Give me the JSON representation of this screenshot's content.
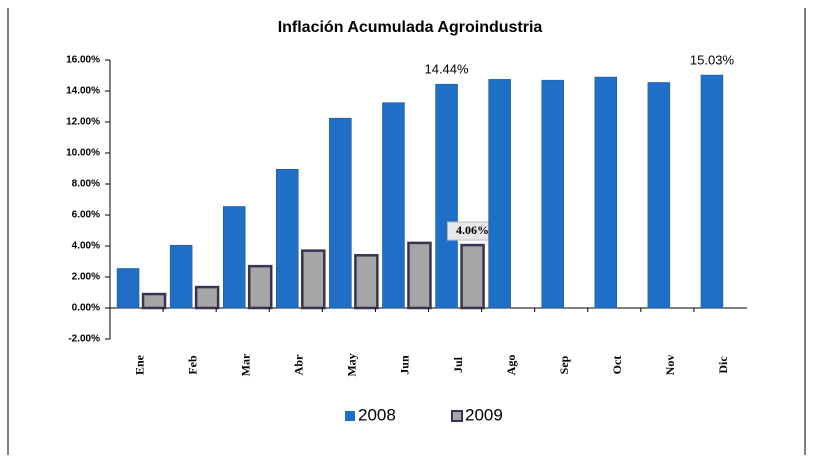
{
  "chart_data": {
    "type": "bar",
    "title": "Inflación Acumulada Agroindustria",
    "categories": [
      "Ene",
      "Feb",
      "Mar",
      "Abr",
      "May",
      "Jun",
      "Jul",
      "Ago",
      "Sep",
      "Oct",
      "Nov",
      "Dic"
    ],
    "series": [
      {
        "name": "2008",
        "color": "#1f6fc6",
        "values": [
          2.55,
          4.05,
          6.55,
          8.95,
          12.25,
          13.25,
          14.44,
          14.75,
          14.7,
          14.9,
          14.55,
          15.03
        ],
        "value_labels": [
          null,
          null,
          null,
          null,
          null,
          null,
          "14.44%",
          null,
          null,
          null,
          null,
          "15.03%"
        ]
      },
      {
        "name": "2009",
        "color": "#a6a6a6",
        "values": [
          0.9,
          1.35,
          2.7,
          3.7,
          3.4,
          4.2,
          4.06,
          null,
          null,
          null,
          null,
          null
        ],
        "value_labels": [
          null,
          null,
          null,
          null,
          null,
          null,
          "4.06%",
          null,
          null,
          null,
          null,
          null
        ]
      }
    ],
    "ylim": [
      -2,
      16
    ],
    "yticks": [
      {
        "value": -2,
        "label": "-2.00%"
      },
      {
        "value": 0,
        "label": "0.00%"
      },
      {
        "value": 2,
        "label": "2.00%"
      },
      {
        "value": 4,
        "label": "4.00%"
      },
      {
        "value": 6,
        "label": "6.00%"
      },
      {
        "value": 8,
        "label": "8.00%"
      },
      {
        "value": 10,
        "label": "10.00%"
      },
      {
        "value": 12,
        "label": "12.00%"
      },
      {
        "value": 14,
        "label": "14.00%"
      },
      {
        "value": 16,
        "label": "16.00%"
      }
    ],
    "legend": "bottom",
    "grid": false
  }
}
